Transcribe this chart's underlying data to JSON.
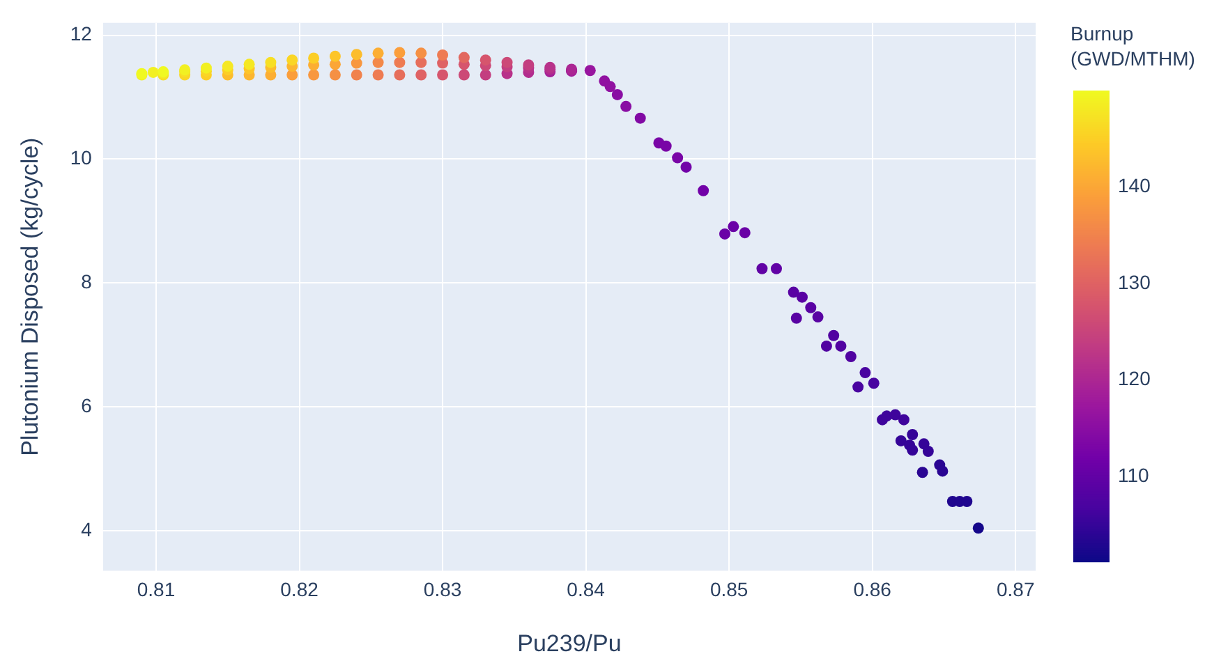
{
  "chart_data": {
    "type": "scatter",
    "xlabel": "Pu239/Pu",
    "ylabel": "Plutonium Disposed (kg/cycle)",
    "clabel": "Burnup (GWD/MTHM)",
    "xlim": [
      0.8063,
      0.8714
    ],
    "ylim": [
      3.35,
      12.2
    ],
    "xticks": [
      0.81,
      0.82,
      0.83,
      0.84,
      0.85,
      0.86,
      0.87
    ],
    "yticks": [
      4,
      6,
      8,
      10,
      12
    ],
    "clim": [
      101.2,
      150
    ],
    "cticks": [
      110,
      120,
      130,
      140
    ],
    "grid": true,
    "legend": false,
    "marker": "circle",
    "series": [
      {
        "x": [
          0.809,
          0.8105,
          0.812,
          0.8135,
          0.815,
          0.8165,
          0.818,
          0.8195,
          0.821,
          0.8225,
          0.824,
          0.8255,
          0.827,
          0.8285,
          0.83,
          0.8315,
          0.833,
          0.8345,
          0.836,
          0.8375,
          0.839,
          0.8098,
          0.8105,
          0.812,
          0.8135,
          0.815,
          0.8165,
          0.818,
          0.8195,
          0.821,
          0.8225,
          0.824,
          0.8255,
          0.827,
          0.8285,
          0.83,
          0.8315,
          0.833,
          0.8345,
          0.836,
          0.8375,
          0.839,
          0.809,
          0.8105,
          0.812,
          0.8135,
          0.815,
          0.8165,
          0.818,
          0.8195,
          0.821,
          0.8225,
          0.824,
          0.8255,
          0.827,
          0.8285,
          0.83,
          0.8315,
          0.833,
          0.8345,
          0.836,
          0.8375,
          0.839,
          0.8403,
          0.8413,
          0.8417,
          0.8422,
          0.8428,
          0.8438,
          0.8451,
          0.8456,
          0.8464,
          0.847,
          0.8482,
          0.8497,
          0.8503,
          0.8511,
          0.8523,
          0.8533,
          0.8545,
          0.8551,
          0.8557,
          0.8547,
          0.8562,
          0.8573,
          0.8568,
          0.8578,
          0.8585,
          0.8595,
          0.859,
          0.8601,
          0.8607,
          0.861,
          0.8616,
          0.8622,
          0.8628,
          0.862,
          0.8626,
          0.8628,
          0.8636,
          0.8639,
          0.8635,
          0.8647,
          0.8649,
          0.8656,
          0.8661,
          0.8666,
          0.8674
        ],
        "values": [
          11.36,
          11.36,
          11.36,
          11.36,
          11.36,
          11.36,
          11.36,
          11.36,
          11.36,
          11.36,
          11.36,
          11.36,
          11.36,
          11.36,
          11.36,
          11.36,
          11.36,
          11.38,
          11.4,
          11.41,
          11.42,
          11.4,
          11.39,
          11.41,
          11.42,
          11.44,
          11.46,
          11.48,
          11.5,
          11.52,
          11.53,
          11.55,
          11.56,
          11.56,
          11.56,
          11.55,
          11.53,
          11.51,
          11.49,
          11.47,
          11.45,
          11.43,
          11.38,
          11.41,
          11.44,
          11.47,
          11.5,
          11.53,
          11.56,
          11.6,
          11.63,
          11.66,
          11.69,
          11.71,
          11.72,
          11.71,
          11.68,
          11.64,
          11.6,
          11.56,
          11.52,
          11.48,
          11.45,
          11.43,
          11.26,
          11.17,
          11.04,
          10.85,
          10.66,
          10.26,
          10.21,
          10.02,
          9.87,
          9.49,
          8.79,
          8.91,
          8.81,
          8.23,
          8.23,
          7.85,
          7.77,
          7.6,
          7.43,
          7.45,
          7.15,
          6.98,
          6.98,
          6.81,
          6.55,
          6.32,
          6.38,
          5.79,
          5.85,
          5.87,
          5.79,
          5.55,
          5.45,
          5.38,
          5.3,
          5.4,
          5.28,
          4.94,
          5.06,
          4.96,
          4.47,
          4.47,
          4.47,
          4.04
        ],
        "cvalues": [
          149,
          147,
          146,
          145,
          143,
          142,
          141,
          139,
          138,
          137,
          135,
          134,
          132,
          130,
          128,
          126,
          124,
          122,
          121,
          119,
          118,
          149,
          148,
          147,
          146,
          145,
          144,
          143,
          142,
          141,
          140,
          138,
          136,
          134,
          132,
          130,
          128,
          126,
          124,
          122,
          121,
          119,
          150,
          150,
          149,
          149,
          148,
          148,
          147,
          146,
          145,
          144,
          143,
          141,
          139,
          137,
          134,
          131,
          128,
          126,
          124,
          122,
          120,
          117,
          116,
          116,
          115,
          115,
          114,
          113,
          113,
          113,
          112,
          112,
          111,
          111,
          111,
          110,
          110,
          109,
          109,
          109,
          109,
          109,
          108,
          108,
          108,
          108,
          107,
          107,
          107,
          106,
          106,
          106,
          106,
          105,
          105,
          105,
          105,
          105,
          105,
          104,
          104,
          104,
          103,
          103,
          103,
          102
        ]
      }
    ]
  }
}
